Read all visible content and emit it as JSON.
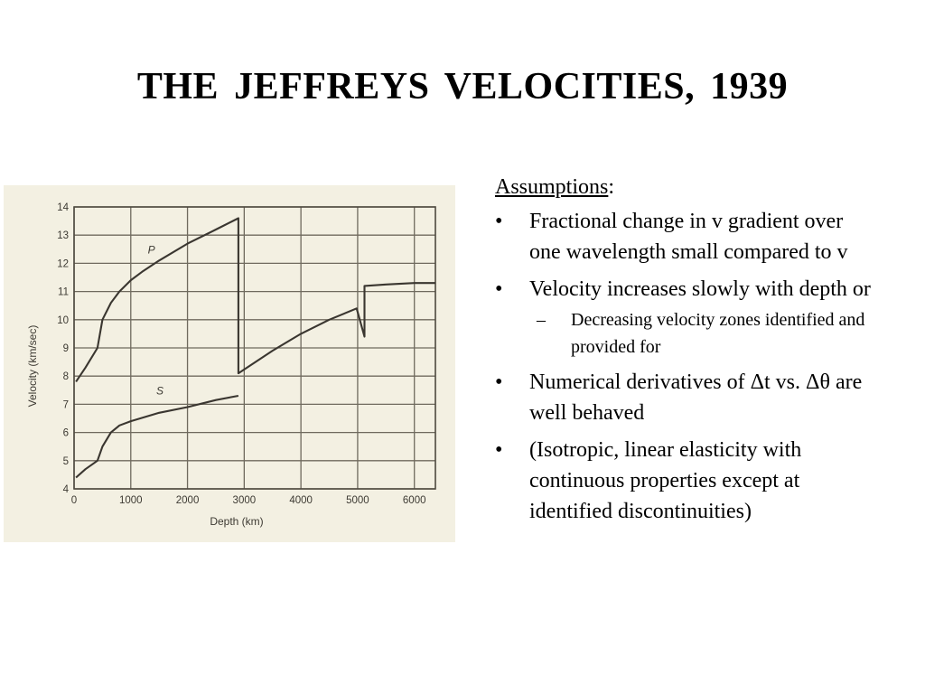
{
  "title": "THE  JEFFREYS  VELOCITIES,  1939",
  "assumptions": {
    "heading": "Assumptions",
    "heading_suffix": ":",
    "bullet_mark": "•",
    "sub_mark": "–",
    "bullets": [
      "Fractional change in v gradient over one wavelength small compared to v",
      "Velocity increases slowly with depth or",
      "Numerical derivatives of Δt vs. Δθ are well behaved",
      "(Isotropic, linear elasticity with continuous properties except at identified discontinuities)"
    ],
    "sub_bullets": [
      "Decreasing velocity zones identified and provided for"
    ]
  },
  "chart_data": {
    "type": "line",
    "title": "",
    "xlabel": "Depth (km)",
    "ylabel": "Velocity  (km/sec)",
    "xlim": [
      0,
      6371
    ],
    "ylim": [
      4,
      14
    ],
    "x_ticks": [
      0,
      1000,
      2000,
      3000,
      4000,
      5000,
      6000
    ],
    "y_ticks": [
      4,
      5,
      6,
      7,
      8,
      9,
      10,
      11,
      12,
      13,
      14
    ],
    "grid": true,
    "series": [
      {
        "name": "P",
        "points": [
          [
            33,
            7.8
          ],
          [
            200,
            8.3
          ],
          [
            413,
            9.0
          ],
          [
            500,
            10.0
          ],
          [
            650,
            10.6
          ],
          [
            800,
            11.0
          ],
          [
            1000,
            11.4
          ],
          [
            1200,
            11.7
          ],
          [
            1500,
            12.1
          ],
          [
            2000,
            12.7
          ],
          [
            2500,
            13.2
          ],
          [
            2898,
            13.6
          ],
          [
            2898,
            8.1
          ],
          [
            3500,
            8.9
          ],
          [
            4000,
            9.5
          ],
          [
            4500,
            10.0
          ],
          [
            4982,
            10.4
          ],
          [
            5121,
            9.4
          ],
          [
            5121,
            11.2
          ],
          [
            5500,
            11.25
          ],
          [
            6000,
            11.3
          ],
          [
            6371,
            11.3
          ]
        ]
      },
      {
        "name": "S",
        "points": [
          [
            33,
            4.4
          ],
          [
            200,
            4.7
          ],
          [
            413,
            5.0
          ],
          [
            500,
            5.5
          ],
          [
            650,
            6.0
          ],
          [
            800,
            6.25
          ],
          [
            1000,
            6.4
          ],
          [
            1500,
            6.7
          ],
          [
            2000,
            6.9
          ],
          [
            2500,
            7.15
          ],
          [
            2898,
            7.3
          ]
        ]
      }
    ]
  }
}
